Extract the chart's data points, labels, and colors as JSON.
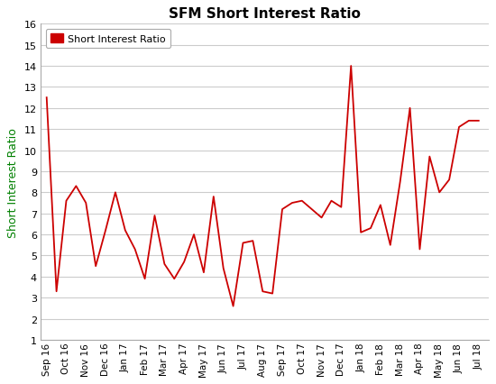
{
  "title": "SFM Short Interest Ratio",
  "ylabel": "Short Interest Ratio",
  "legend_label": "Short Interest Ratio",
  "line_color": "#CC0000",
  "legend_marker_color": "#CC0000",
  "ylabel_color": "#008000",
  "grid_color": "#CCCCCC",
  "background_color": "#FFFFFF",
  "plot_bg_color": "#FFFFFF",
  "ylim": [
    1,
    16
  ],
  "yticks": [
    1,
    2,
    3,
    4,
    5,
    6,
    7,
    8,
    9,
    10,
    11,
    12,
    13,
    14,
    15,
    16
  ],
  "labels": [
    "Sep 16",
    "Oct 16",
    "Nov 16",
    "Dec 16",
    "Jan 17",
    "Feb 17",
    "Mar 17",
    "Apr 17",
    "May 17",
    "Jun 17",
    "Jul 17",
    "Aug 17",
    "Sep 17",
    "Oct 17",
    "Nov 17",
    "Dec 17",
    "Jan 18",
    "Feb 18",
    "Mar 18",
    "Apr 18",
    "May 18",
    "Jun 18",
    "Jul 18"
  ],
  "values": [
    12.5,
    3.3,
    7.6,
    8.3,
    7.5,
    4.5,
    6.2,
    8.0,
    6.2,
    5.3,
    3.9,
    6.9,
    4.6,
    3.9,
    4.7,
    6.0,
    4.2,
    7.8,
    4.4,
    2.6,
    5.6,
    5.7,
    3.3,
    3.2,
    7.2,
    7.5,
    7.6,
    7.2,
    6.8,
    7.6,
    7.3,
    14.0,
    6.1,
    6.3,
    7.4,
    5.5,
    8.5,
    12.0,
    5.3,
    9.7,
    8.0,
    8.6,
    11.1,
    11.4,
    11.4
  ],
  "n_labels": 23
}
